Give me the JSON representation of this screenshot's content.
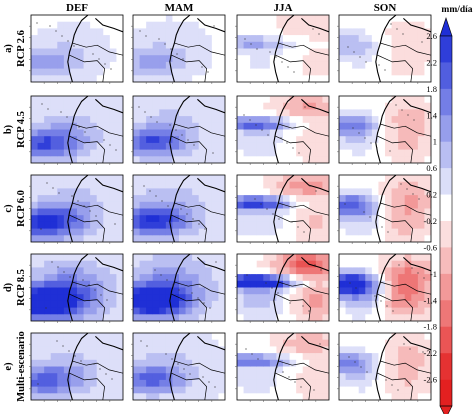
{
  "chart_data": {
    "type": "heatmap",
    "title": "",
    "seasons": [
      "DEF",
      "MAM",
      "JJA",
      "SON"
    ],
    "scenarios": [
      {
        "label": "a)",
        "name": "RCP 2.6",
        "intensity": 0.25
      },
      {
        "label": "b)",
        "name": "RCP 4.5",
        "intensity": 0.45
      },
      {
        "label": "c)",
        "name": "RCP 6.0",
        "intensity": 0.55
      },
      {
        "label": "d)",
        "name": "RCP 8.5",
        "intensity": 0.85
      },
      {
        "label": "e)",
        "name": "Multi-escenario",
        "intensity": 0.4
      }
    ],
    "colorbar": {
      "unit": "mm/día",
      "ticks": [
        2.6,
        2.2,
        1.8,
        1.4,
        1,
        0.6,
        0.2,
        -0.2,
        -0.6,
        -1,
        -1.4,
        -1.8,
        -2.2,
        -2.6
      ],
      "tick_labels": [
        "2.6",
        "2.2",
        "1.8",
        "1.4",
        "1",
        "0.6",
        "0.2",
        "-0.2",
        "-0.6",
        "-1",
        "-1.4",
        "-1.8",
        "-2.2",
        "-2.6"
      ],
      "vmin": -2.6,
      "vmax": 2.6,
      "colors": {
        "positive": "#1f2fd6",
        "neutral": "#ffffff",
        "negative": "#e32020"
      }
    }
  }
}
